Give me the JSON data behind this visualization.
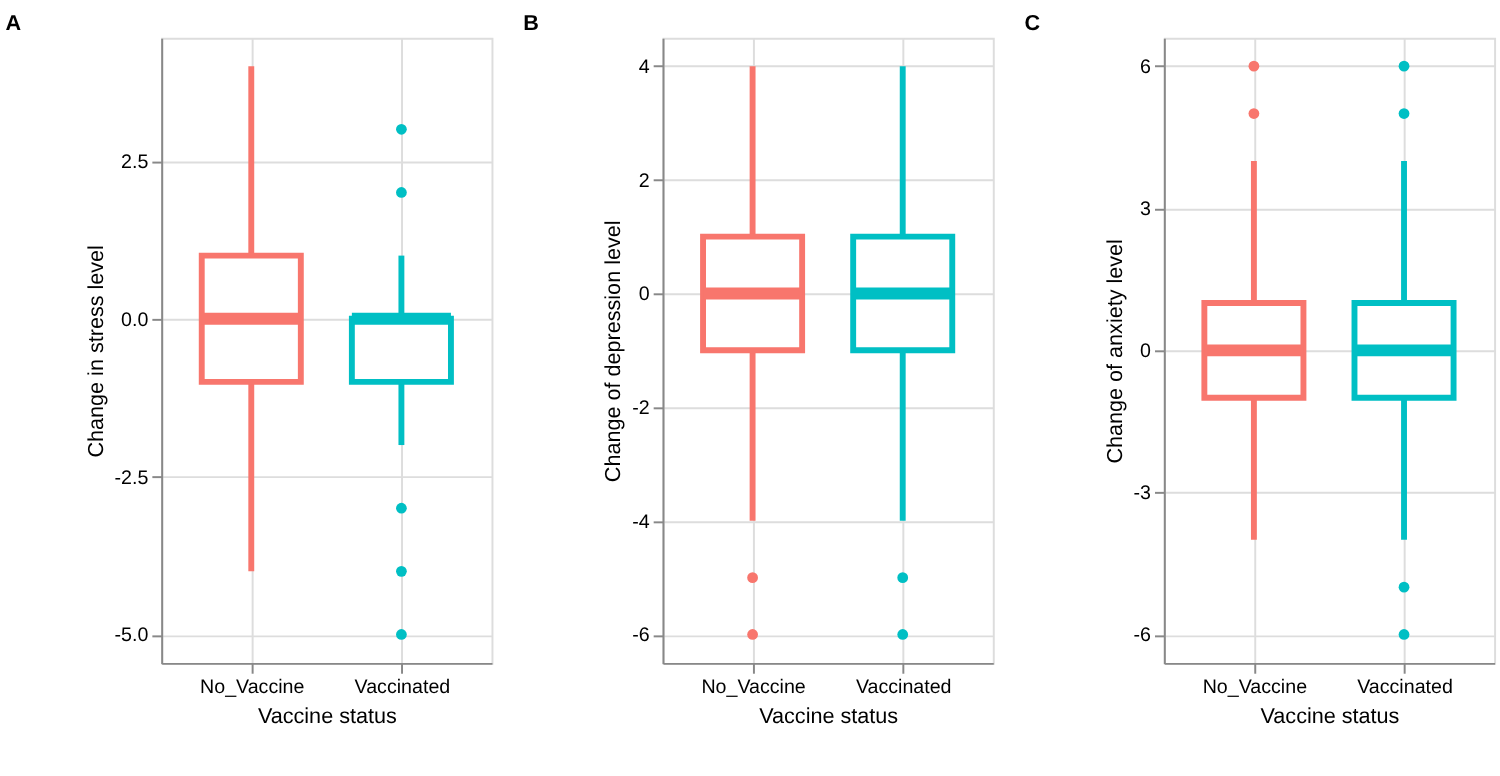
{
  "chart_data": [
    {
      "type": "box",
      "title": "A",
      "xlabel": "Vaccine status",
      "ylabel": "Change in stress level",
      "categories": [
        "No_Vaccine",
        "Vaccinated"
      ],
      "colors": [
        "#f8766d",
        "#00bfc4"
      ],
      "ylim": [
        -5.45,
        4.45
      ],
      "yticks": [
        {
          "value": -5,
          "label": "-5.0"
        },
        -2.5,
        {
          "value": 0,
          "label": "0.0"
        },
        2.5
      ],
      "grid": true,
      "boxes": [
        {
          "low": -4,
          "q1": -1,
          "median": 0,
          "q3": 1,
          "high": 4
        },
        {
          "low": -2,
          "q1": -1,
          "median": 0,
          "q3": 0,
          "high": 1,
          "outliers": [
            3,
            2,
            -3,
            -4,
            -5
          ]
        }
      ]
    },
    {
      "type": "box",
      "title": "B",
      "xlabel": "Vaccine status",
      "ylabel": "Change of depression level",
      "categories": [
        "No_Vaccine",
        "Vaccinated"
      ],
      "colors": [
        "#f8766d",
        "#00bfc4"
      ],
      "ylim": [
        -6.5,
        4.5
      ],
      "yticks": [
        -6,
        -4,
        -2,
        0,
        2,
        4
      ],
      "grid": true,
      "boxes": [
        {
          "low": -4,
          "q1": -1,
          "median": 0,
          "q3": 1,
          "high": 4,
          "outliers": [
            -5,
            -6
          ]
        },
        {
          "low": -4,
          "q1": -1,
          "median": 0,
          "q3": 1,
          "high": 4,
          "outliers": [
            -5,
            -6
          ]
        }
      ]
    },
    {
      "type": "box",
      "title": "C",
      "xlabel": "Vaccine status",
      "ylabel": "Change of anxiety level",
      "categories": [
        "No_Vaccine",
        "Vaccinated"
      ],
      "colors": [
        "#f8766d",
        "#00bfc4"
      ],
      "ylim": [
        -6.6,
        6.6
      ],
      "yticks": [
        -6,
        -3,
        0,
        3,
        6
      ],
      "grid": true,
      "boxes": [
        {
          "low": -4,
          "q1": -1,
          "median": 0,
          "q3": 1,
          "high": 4,
          "outliers": [
            6,
            5
          ]
        },
        {
          "low": -4,
          "q1": -1,
          "median": 0,
          "q3": 1,
          "high": 4,
          "outliers": [
            6,
            5,
            -5,
            -6
          ]
        }
      ]
    }
  ]
}
